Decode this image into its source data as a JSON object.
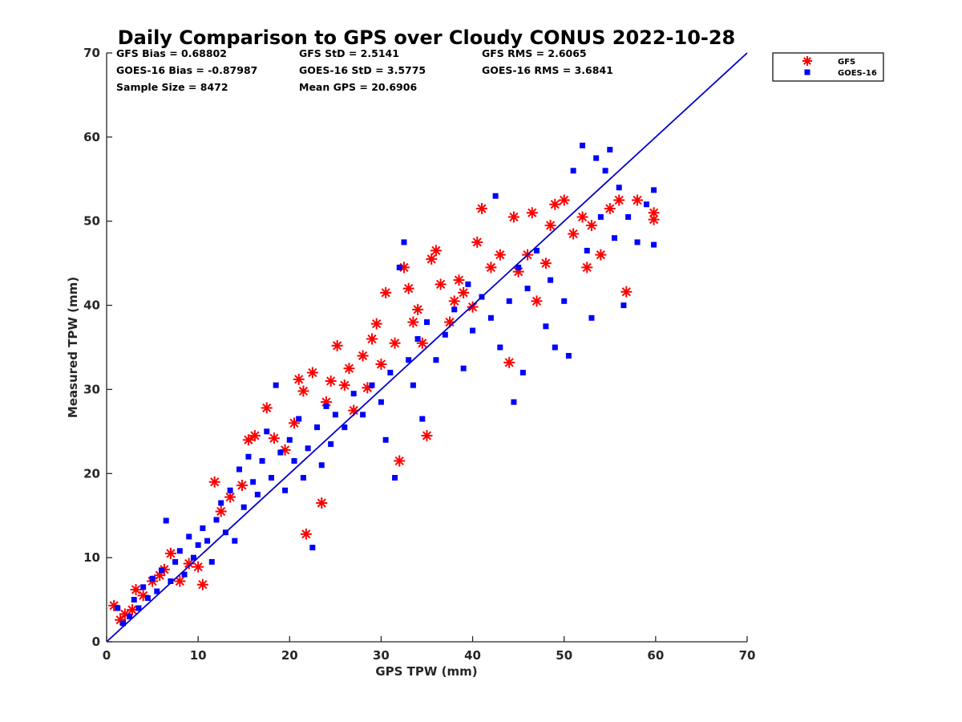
{
  "chart_data": {
    "type": "scatter",
    "title": "Daily Comparison to GPS over Cloudy CONUS 2022-10-28",
    "xlabel": "GPS TPW (mm)",
    "ylabel": "Measured TPW (mm)",
    "xlim": [
      0,
      70
    ],
    "ylim": [
      0,
      70
    ],
    "xticks": [
      0,
      10,
      20,
      30,
      40,
      50,
      60,
      70
    ],
    "yticks": [
      0,
      10,
      20,
      30,
      40,
      50,
      60,
      70
    ],
    "grid": false,
    "legend_placement": "outside-top-right",
    "reference_line": {
      "x": [
        0,
        70
      ],
      "y": [
        0,
        70
      ],
      "color": "#0000cc"
    },
    "stats": [
      [
        "GFS Bias = 0.68802",
        "GFS StD = 2.5141",
        "GFS RMS = 2.6065"
      ],
      [
        "GOES-16 Bias = -0.87987",
        "GOES-16 StD = 3.5775",
        "GOES-16 RMS = 3.6841"
      ],
      [
        "Sample Size = 8472",
        "Mean GPS = 20.6906",
        ""
      ]
    ],
    "series": [
      {
        "name": "GFS",
        "marker": "asterisk",
        "color": "#ff0000",
        "points": [
          [
            0.8,
            4.3
          ],
          [
            1.5,
            2.6
          ],
          [
            2.0,
            3.3
          ],
          [
            2.8,
            3.8
          ],
          [
            3.2,
            6.2
          ],
          [
            4.0,
            5.5
          ],
          [
            5.0,
            7.2
          ],
          [
            5.8,
            7.9
          ],
          [
            6.3,
            8.6
          ],
          [
            7.0,
            10.5
          ],
          [
            8.0,
            7.2
          ],
          [
            9.0,
            9.3
          ],
          [
            10.0,
            8.9
          ],
          [
            10.5,
            6.8
          ],
          [
            11.8,
            19.0
          ],
          [
            12.5,
            15.5
          ],
          [
            13.5,
            17.2
          ],
          [
            14.8,
            18.6
          ],
          [
            15.5,
            24.0
          ],
          [
            16.2,
            24.5
          ],
          [
            17.5,
            27.8
          ],
          [
            18.3,
            24.2
          ],
          [
            19.5,
            22.8
          ],
          [
            20.5,
            26.0
          ],
          [
            21.0,
            31.2
          ],
          [
            21.5,
            29.8
          ],
          [
            21.8,
            12.8
          ],
          [
            22.5,
            32.0
          ],
          [
            23.5,
            16.5
          ],
          [
            24.0,
            28.5
          ],
          [
            24.5,
            31.0
          ],
          [
            25.2,
            35.2
          ],
          [
            26.0,
            30.5
          ],
          [
            26.5,
            32.5
          ],
          [
            27.0,
            27.5
          ],
          [
            28.0,
            34.0
          ],
          [
            28.5,
            30.2
          ],
          [
            29.0,
            36.0
          ],
          [
            29.5,
            37.8
          ],
          [
            30.0,
            33.0
          ],
          [
            30.5,
            41.5
          ],
          [
            31.5,
            35.5
          ],
          [
            32.0,
            21.5
          ],
          [
            32.5,
            44.5
          ],
          [
            33.0,
            42.0
          ],
          [
            33.5,
            38.0
          ],
          [
            34.0,
            39.5
          ],
          [
            34.5,
            35.5
          ],
          [
            35.0,
            24.5
          ],
          [
            35.5,
            45.5
          ],
          [
            36.0,
            46.5
          ],
          [
            36.5,
            42.5
          ],
          [
            37.5,
            38.0
          ],
          [
            38.0,
            40.5
          ],
          [
            38.5,
            43.0
          ],
          [
            39.0,
            41.5
          ],
          [
            40.0,
            39.8
          ],
          [
            40.5,
            47.5
          ],
          [
            41.0,
            51.5
          ],
          [
            42.0,
            44.5
          ],
          [
            43.0,
            46.0
          ],
          [
            44.0,
            33.2
          ],
          [
            44.5,
            50.5
          ],
          [
            45.0,
            44.0
          ],
          [
            46.0,
            46.0
          ],
          [
            46.5,
            51.0
          ],
          [
            47.0,
            40.5
          ],
          [
            48.0,
            45.0
          ],
          [
            48.5,
            49.5
          ],
          [
            49.0,
            52.0
          ],
          [
            50.0,
            52.5
          ],
          [
            51.0,
            48.5
          ],
          [
            52.0,
            50.5
          ],
          [
            52.5,
            44.5
          ],
          [
            53.0,
            49.5
          ],
          [
            54.0,
            46.0
          ],
          [
            55.0,
            51.5
          ],
          [
            56.0,
            52.5
          ],
          [
            56.8,
            41.6
          ],
          [
            58.0,
            52.5
          ],
          [
            59.8,
            51.0
          ],
          [
            59.8,
            50.2
          ]
        ]
      },
      {
        "name": "GOES-16",
        "marker": "square",
        "color": "#0000ff",
        "points": [
          [
            1.2,
            4.0
          ],
          [
            1.8,
            2.2
          ],
          [
            2.5,
            3.0
          ],
          [
            3.0,
            5.0
          ],
          [
            3.5,
            4.0
          ],
          [
            4.0,
            6.5
          ],
          [
            4.5,
            5.2
          ],
          [
            5.0,
            7.5
          ],
          [
            5.5,
            6.0
          ],
          [
            6.0,
            8.5
          ],
          [
            6.5,
            14.4
          ],
          [
            7.0,
            7.2
          ],
          [
            7.5,
            9.5
          ],
          [
            8.0,
            10.8
          ],
          [
            8.5,
            8.0
          ],
          [
            9.0,
            12.5
          ],
          [
            9.5,
            10.0
          ],
          [
            10.0,
            11.5
          ],
          [
            10.5,
            13.5
          ],
          [
            11.0,
            12.0
          ],
          [
            11.5,
            9.5
          ],
          [
            12.0,
            14.5
          ],
          [
            12.5,
            16.5
          ],
          [
            13.0,
            13.0
          ],
          [
            13.5,
            18.0
          ],
          [
            14.0,
            12.0
          ],
          [
            14.5,
            20.5
          ],
          [
            15.0,
            16.0
          ],
          [
            15.5,
            22.0
          ],
          [
            16.0,
            19.0
          ],
          [
            16.5,
            17.5
          ],
          [
            17.0,
            21.5
          ],
          [
            17.5,
            25.0
          ],
          [
            18.0,
            19.5
          ],
          [
            18.5,
            30.5
          ],
          [
            19.0,
            22.5
          ],
          [
            19.5,
            18.0
          ],
          [
            20.0,
            24.0
          ],
          [
            20.5,
            21.5
          ],
          [
            21.0,
            26.5
          ],
          [
            21.5,
            19.5
          ],
          [
            22.0,
            23.0
          ],
          [
            22.5,
            11.2
          ],
          [
            23.0,
            25.5
          ],
          [
            23.5,
            21.0
          ],
          [
            24.0,
            28.0
          ],
          [
            24.5,
            23.5
          ],
          [
            25.0,
            27.0
          ],
          [
            26.0,
            25.5
          ],
          [
            27.0,
            29.5
          ],
          [
            28.0,
            27.0
          ],
          [
            29.0,
            30.5
          ],
          [
            30.0,
            28.5
          ],
          [
            30.5,
            24.0
          ],
          [
            31.0,
            32.0
          ],
          [
            31.5,
            19.5
          ],
          [
            32.0,
            44.5
          ],
          [
            32.5,
            47.5
          ],
          [
            33.0,
            33.5
          ],
          [
            33.5,
            30.5
          ],
          [
            34.0,
            36.0
          ],
          [
            34.5,
            26.5
          ],
          [
            35.0,
            38.0
          ],
          [
            36.0,
            33.5
          ],
          [
            37.0,
            36.5
          ],
          [
            38.0,
            39.5
          ],
          [
            39.0,
            32.5
          ],
          [
            39.5,
            42.5
          ],
          [
            40.0,
            37.0
          ],
          [
            41.0,
            41.0
          ],
          [
            42.0,
            38.5
          ],
          [
            42.5,
            53.0
          ],
          [
            43.0,
            35.0
          ],
          [
            44.0,
            40.5
          ],
          [
            44.5,
            28.5
          ],
          [
            45.0,
            44.5
          ],
          [
            45.5,
            32.0
          ],
          [
            46.0,
            42.0
          ],
          [
            47.0,
            46.5
          ],
          [
            48.0,
            37.5
          ],
          [
            48.5,
            43.0
          ],
          [
            49.0,
            35.0
          ],
          [
            50.0,
            40.5
          ],
          [
            50.5,
            34.0
          ],
          [
            51.0,
            56.0
          ],
          [
            52.0,
            59.0
          ],
          [
            52.5,
            46.5
          ],
          [
            53.0,
            38.5
          ],
          [
            53.5,
            57.5
          ],
          [
            54.0,
            50.5
          ],
          [
            54.5,
            56.0
          ],
          [
            55.0,
            58.5
          ],
          [
            55.5,
            48.0
          ],
          [
            56.0,
            54.0
          ],
          [
            56.5,
            40.0
          ],
          [
            57.0,
            50.5
          ],
          [
            58.0,
            47.5
          ],
          [
            59.0,
            52.0
          ],
          [
            59.8,
            53.7
          ],
          [
            59.8,
            47.2
          ]
        ]
      }
    ]
  }
}
